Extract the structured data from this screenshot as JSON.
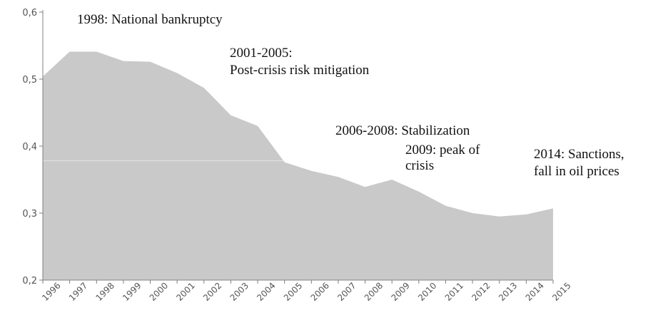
{
  "chart_data": {
    "type": "area",
    "title": "",
    "xlabel": "",
    "ylabel": "",
    "x": [
      "1996",
      "1997",
      "1998",
      "1999",
      "2000",
      "2001",
      "2002",
      "2003",
      "2004",
      "2005",
      "2006",
      "2007",
      "2008",
      "2009",
      "2010",
      "2011",
      "2012",
      "2013",
      "2014",
      "2015"
    ],
    "series": [
      {
        "values": [
          0.504,
          0.541,
          0.541,
          0.527,
          0.526,
          0.509,
          0.487,
          0.446,
          0.43,
          0.376,
          0.363,
          0.354,
          0.339,
          0.35,
          0.332,
          0.311,
          0.3,
          0.295,
          0.298,
          0.307
        ]
      }
    ],
    "ylim": [
      0.2,
      0.6
    ],
    "yticks": [
      "0,2",
      "0,3",
      "0,4",
      "0,5",
      "0,6"
    ],
    "grid": false,
    "legend": "none",
    "colors": {
      "area": "#c9c9c9",
      "axis": "#7f7f7f",
      "text": "#111111",
      "tick": "#555555"
    },
    "annotations": [
      {
        "id": "ann-1998",
        "lines": [
          "1998: National  bankruptcy"
        ]
      },
      {
        "id": "ann-2001",
        "lines": [
          "2001-2005:",
          "Post-crisis risk mitigation"
        ]
      },
      {
        "id": "ann-2006",
        "lines": [
          "2006-2008: Stabilization"
        ]
      },
      {
        "id": "ann-2009",
        "lines": [
          "2009: peak of",
          "crisis"
        ]
      },
      {
        "id": "ann-2014",
        "lines": [
          "2014: Sanctions,",
          "fall in oil prices"
        ]
      }
    ]
  }
}
